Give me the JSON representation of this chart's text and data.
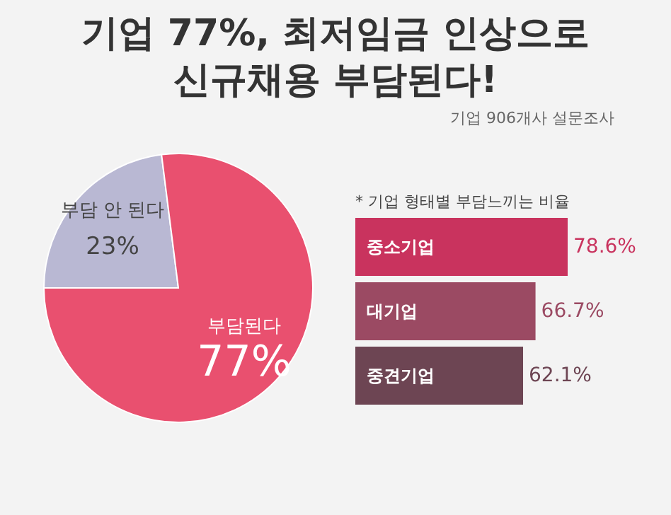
{
  "chart_data": [
    {
      "type": "pie",
      "title": "기업 77%, 최저임금 인상으로 신규채용 부담된다!",
      "subtitle": "기업 906개사 설문조사",
      "categories": [
        "부담 안 된다",
        "부담된다"
      ],
      "values": [
        23,
        77
      ],
      "value_labels": [
        "23%",
        "77%"
      ],
      "colors": [
        "#b9b8d3",
        "#e9506f"
      ]
    },
    {
      "type": "bar",
      "orientation": "horizontal",
      "title": "* 기업 형태별 부담느끼는 비율",
      "categories": [
        "중소기업",
        "대기업",
        "중견기업"
      ],
      "values": [
        78.6,
        66.7,
        62.1
      ],
      "value_labels": [
        "78.6%",
        "66.7%",
        "62.1%"
      ],
      "colors": [
        "#c9335e",
        "#9b4a63",
        "#6d4553"
      ]
    }
  ]
}
